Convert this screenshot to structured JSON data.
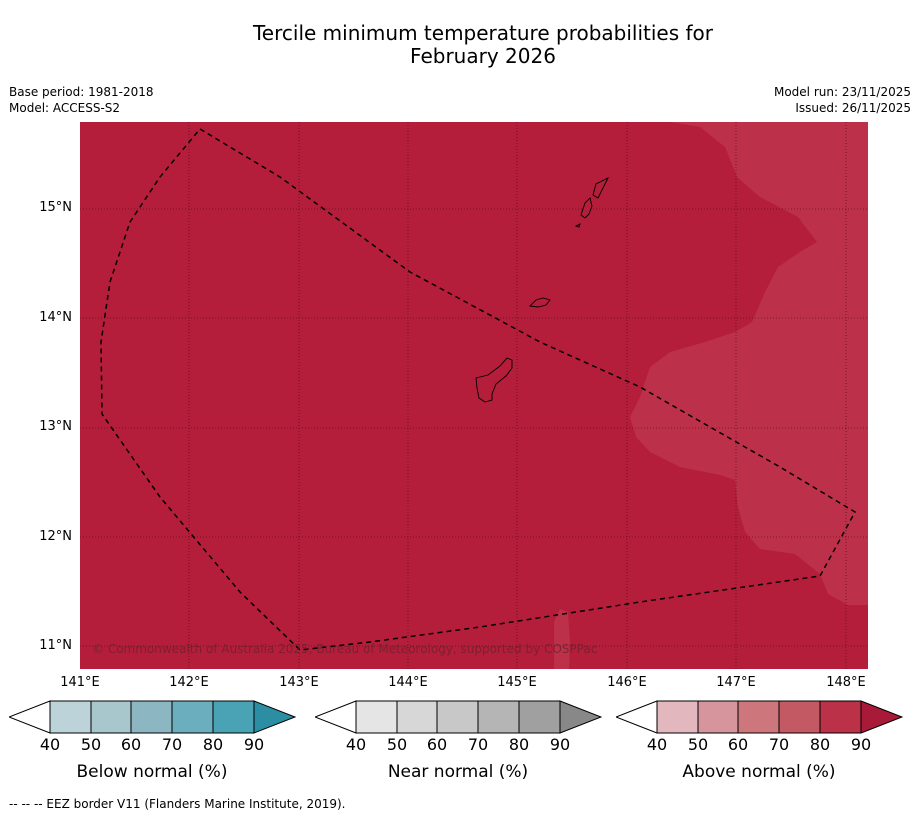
{
  "title": {
    "line1": "Tercile minimum temperature probabilities for",
    "line2": "February 2026"
  },
  "meta": {
    "base_period": "Base period: 1981-2018",
    "model": "Model: ACCESS-S2",
    "model_run": "Model run: 23/11/2025",
    "issued": "Issued: 26/11/2025"
  },
  "map": {
    "lat_labels": [
      "15°N",
      "14°N",
      "13°N",
      "12°N",
      "11°N"
    ],
    "lon_labels": [
      "141°E",
      "142°E",
      "143°E",
      "144°E",
      "145°E",
      "146°E",
      "147°E",
      "148°E"
    ],
    "copyright": "© Commonwealth of Australia 2025, Bureau of Meteorology, supported by COSPPac",
    "colors": {
      "above_90": "#b41e3a",
      "above_80": "#bc3049"
    }
  },
  "colorbars": [
    {
      "label": "Below normal (%)",
      "ticks": [
        "40",
        "50",
        "60",
        "70",
        "80",
        "90"
      ],
      "colors": [
        "#ffffff",
        "#bcd3da",
        "#a7c7cd",
        "#8cb7c2",
        "#6baebd",
        "#49a3b4",
        "#2b8ea3"
      ]
    },
    {
      "label": "Near normal (%)",
      "ticks": [
        "40",
        "50",
        "60",
        "70",
        "80",
        "90"
      ],
      "colors": [
        "#ffffff",
        "#e5e5e5",
        "#d7d7d7",
        "#c8c8c8",
        "#b5b5b5",
        "#a0a0a0",
        "#888888"
      ]
    },
    {
      "label": "Above normal (%)",
      "ticks": [
        "40",
        "50",
        "60",
        "70",
        "80",
        "90"
      ],
      "colors": [
        "#ffffff",
        "#e2b8be",
        "#d6959c",
        "#cd777d",
        "#c35963",
        "#bb3148",
        "#a91a39"
      ]
    }
  ],
  "footnote": "--  --  -- EEZ border V11 (Flanders Marine Institute, 2019)."
}
